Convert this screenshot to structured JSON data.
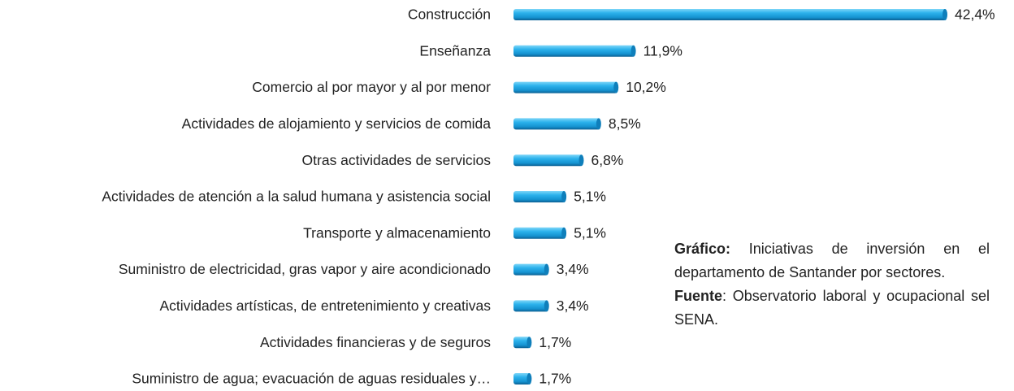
{
  "chart_data": {
    "type": "bar",
    "orientation": "horizontal",
    "color": "#1aa3e0",
    "categories": [
      "Construcción",
      "Enseñanza",
      "Comercio al por mayor y al por menor",
      "Actividades de alojamiento y servicios de comida",
      "Otras actividades de servicios",
      "Actividades de atención a la salud humana y asistencia social",
      "Transporte y almacenamiento",
      "Suministro de electricidad, gras vapor y aire acondicionado",
      "Actividades artísticas, de entretenimiento y creativas",
      "Actividades financieras y de seguros",
      "Suministro de agua; evacuación de aguas residuales y…"
    ],
    "values": [
      42.4,
      11.9,
      10.2,
      8.5,
      6.8,
      5.1,
      5.1,
      3.4,
      3.4,
      1.7,
      1.7
    ],
    "value_labels": [
      "42,4%",
      "11,9%",
      "10,2%",
      "8,5%",
      "6,8%",
      "5,1%",
      "5,1%",
      "3,4%",
      "3,4%",
      "1,7%",
      "1,7%"
    ],
    "annotations": [
      {
        "label": "Gráfico:",
        "text": "Iniciativas de inversión en el departamento de Santander por sectores."
      },
      {
        "label": "Fuente",
        "text": ": Observatorio laboral y ocupacional sel SENA."
      }
    ]
  }
}
